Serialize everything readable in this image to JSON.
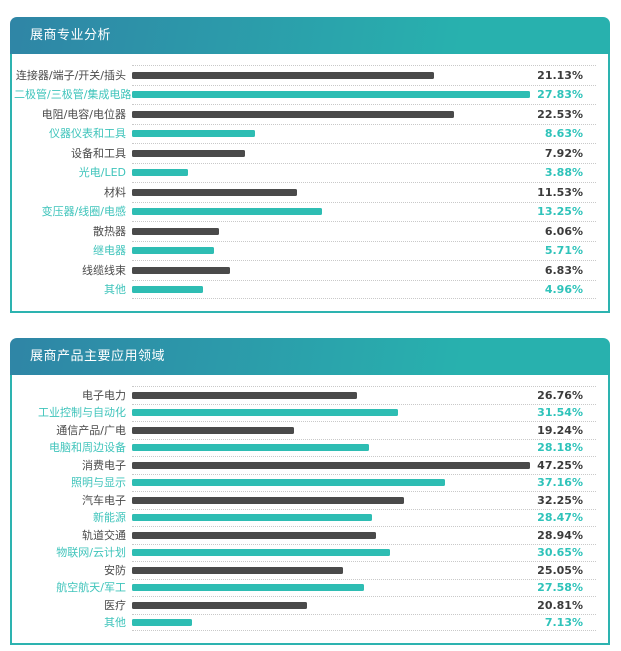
{
  "colors": {
    "dark_bar": "#4a4a4a",
    "teal_bar": "#2ebdb3",
    "dark_text": "#4a4a4a",
    "teal_text": "#3fc4bb",
    "pct_dark": "#3b3b3b",
    "pct_teal": "#2fc3ba",
    "panel_border": "#2db3b0",
    "header_gradient_start": "#2f85a6",
    "header_gradient_end": "#28b1ae",
    "dotted_line": "#c9c9c9"
  },
  "chart_data": [
    {
      "type": "bar",
      "orientation": "horizontal",
      "title": "展商专业分析",
      "xlim": [
        0,
        27.83
      ],
      "grid": "dotted-row-separators",
      "legend_position": "none",
      "value_format": "percent",
      "rows": [
        {
          "label": "连接器/端子/开关/插头",
          "value": 21.13,
          "display": "21.13%",
          "color": "dark"
        },
        {
          "label": "二极管/三极管/集成电路",
          "value": 27.83,
          "display": "27.83%",
          "color": "teal"
        },
        {
          "label": "电阻/电容/电位器",
          "value": 22.53,
          "display": "22.53%",
          "color": "dark"
        },
        {
          "label": "仪器仪表和工具",
          "value": 8.63,
          "display": "8.63%",
          "color": "teal"
        },
        {
          "label": "设备和工具",
          "value": 7.92,
          "display": "7.92%",
          "color": "dark"
        },
        {
          "label": "光电/LED",
          "value": 3.88,
          "display": "3.88%",
          "color": "teal"
        },
        {
          "label": "材料",
          "value": 11.53,
          "display": "11.53%",
          "color": "dark"
        },
        {
          "label": "变压器/线圈/电感",
          "value": 13.25,
          "display": "13.25%",
          "color": "teal"
        },
        {
          "label": "散热器",
          "value": 6.06,
          "display": "6.06%",
          "color": "dark"
        },
        {
          "label": "继电器",
          "value": 5.71,
          "display": "5.71%",
          "color": "teal"
        },
        {
          "label": "线缆线束",
          "value": 6.83,
          "display": "6.83%",
          "color": "dark"
        },
        {
          "label": "其他",
          "value": 4.96,
          "display": "4.96%",
          "color": "teal"
        }
      ]
    },
    {
      "type": "bar",
      "orientation": "horizontal",
      "title": "展商产品主要应用领域",
      "xlim": [
        0,
        47.25
      ],
      "grid": "dotted-row-separators",
      "legend_position": "none",
      "value_format": "percent",
      "rows": [
        {
          "label": "电子电力",
          "value": 26.76,
          "display": "26.76%",
          "color": "dark"
        },
        {
          "label": "工业控制与自动化",
          "value": 31.54,
          "display": "31.54%",
          "color": "teal"
        },
        {
          "label": "通信产品/广电",
          "value": 19.24,
          "display": "19.24%",
          "color": "dark"
        },
        {
          "label": "电脑和周边设备",
          "value": 28.18,
          "display": "28.18%",
          "color": "teal"
        },
        {
          "label": "消费电子",
          "value": 47.25,
          "display": "47.25%",
          "color": "dark"
        },
        {
          "label": "照明与显示",
          "value": 37.16,
          "display": "37.16%",
          "color": "teal"
        },
        {
          "label": "汽车电子",
          "value": 32.25,
          "display": "32.25%",
          "color": "dark"
        },
        {
          "label": "新能源",
          "value": 28.47,
          "display": "28.47%",
          "color": "teal"
        },
        {
          "label": "轨道交通",
          "value": 28.94,
          "display": "28.94%",
          "color": "dark"
        },
        {
          "label": "物联网/云计划",
          "value": 30.65,
          "display": "30.65%",
          "color": "teal"
        },
        {
          "label": "安防",
          "value": 25.05,
          "display": "25.05%",
          "color": "dark"
        },
        {
          "label": "航空航天/军工",
          "value": 27.58,
          "display": "27.58%",
          "color": "teal"
        },
        {
          "label": "医疗",
          "value": 20.81,
          "display": "20.81%",
          "color": "dark"
        },
        {
          "label": "其他",
          "value": 7.13,
          "display": "7.13%",
          "color": "teal"
        }
      ]
    }
  ]
}
